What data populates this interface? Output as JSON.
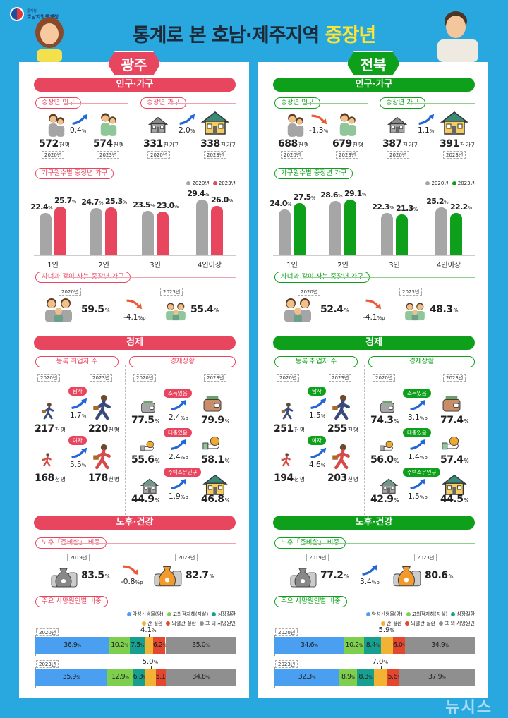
{
  "header": {
    "org_small": "통계청",
    "org": "호남지방통계청",
    "title": "통계로 본 호남·제주지역",
    "title_highlight": "중장년"
  },
  "watermark": "뉴시스",
  "colors": {
    "background": "#29a8e0",
    "gwangju": "#e8455f",
    "jeonbuk": "#0ea01a",
    "bar_2020": "#a6a6a6"
  },
  "death_legend": [
    "악성신생물(암)",
    "고의적자해(자살)",
    "심장질환",
    "간 질환",
    "뇌혈관 질환",
    "그 외 사망원인"
  ],
  "death_colors": [
    "#4a9ff0",
    "#7fcf4f",
    "#179f8f",
    "#f2b233",
    "#e4472e",
    "#8f8f8f"
  ],
  "regions": [
    {
      "name": "광주",
      "color": "#e8455f",
      "line": "#f2a3b0",
      "sections": {
        "pop": "인구·가구",
        "econ": "경제",
        "health": "노후·건강"
      },
      "population": {
        "label": "중장년 인구",
        "from": {
          "value": "572",
          "unit": "천 명",
          "year": "2020년"
        },
        "to": {
          "value": "574",
          "unit": "천 명",
          "year": "2023년"
        },
        "change": "0.4",
        "change_unit": "%",
        "direction": "up"
      },
      "households": {
        "label": "중장년 가구",
        "from": {
          "value": "331",
          "unit": "천 가구",
          "year": "2020년"
        },
        "to": {
          "value": "338",
          "unit": "천 가구",
          "year": "2023년"
        },
        "change": "2.0",
        "change_unit": "%",
        "direction": "up"
      },
      "household_size": {
        "label": "가구원수별 중장년 가구",
        "legend": [
          "2020년",
          "2023년"
        ],
        "categories": [
          "1인",
          "2인",
          "3인",
          "4인이상"
        ],
        "y2020": [
          22.4,
          24.7,
          23.5,
          29.4
        ],
        "y2023": [
          25.7,
          25.3,
          23.0,
          26.0
        ],
        "unit": "%"
      },
      "with_children": {
        "label": "자녀과 같이 사는 중장년 가구",
        "from": {
          "year": "2020년",
          "value": "59.5"
        },
        "to": {
          "year": "2023년",
          "value": "55.4"
        },
        "unit": "%",
        "change": "-4.1",
        "change_unit": "%p",
        "direction": "down"
      },
      "employment": {
        "label": "등록 취업자 수",
        "years": [
          "2020년",
          "2023년"
        ],
        "unit": "천 명",
        "change_unit": "%",
        "rows": [
          {
            "tag": "남자",
            "from": "217",
            "to": "220",
            "change": "1.7"
          },
          {
            "tag": "여자",
            "from": "168",
            "to": "178",
            "change": "5.5"
          }
        ]
      },
      "economy": {
        "label": "경제상황",
        "years": [
          "2020년",
          "2023년"
        ],
        "unit": "%",
        "change_unit": "%p",
        "rows": [
          {
            "tag": "소득있음",
            "icon": "wallet-icon",
            "from": "77.5",
            "to": "79.9",
            "change": "2.4"
          },
          {
            "tag": "대출있음",
            "icon": "hand-coin-icon",
            "from": "55.6",
            "to": "58.1",
            "change": "2.4"
          },
          {
            "tag": "주택소유인구",
            "icon": "house-icon",
            "from": "44.9",
            "to": "46.8",
            "change": "1.9"
          }
        ]
      },
      "retirement": {
        "label": "노후「준비함」 비중",
        "from": {
          "year": "2019년",
          "value": "83.5"
        },
        "to": {
          "year": "2023년",
          "value": "82.7"
        },
        "unit": "%",
        "change": "-0.8",
        "change_unit": "%p",
        "direction": "down"
      },
      "death_causes": {
        "label": "주요 사망원인별 비중",
        "unit": "%",
        "rows": [
          {
            "year": "2020년",
            "values": [
              36.9,
              10.2,
              7.5,
              4.1,
              6.2,
              35.0
            ]
          },
          {
            "year": "2023년",
            "values": [
              35.9,
              12.9,
              6.3,
              5.0,
              5.1,
              34.8
            ]
          }
        ]
      }
    },
    {
      "name": "전북",
      "color": "#0ea01a",
      "line": "#8fd08f",
      "sections": {
        "pop": "인구·가구",
        "econ": "경제",
        "health": "노후·건강"
      },
      "population": {
        "label": "중장년 인구",
        "from": {
          "value": "688",
          "unit": "천 명",
          "year": "2020년"
        },
        "to": {
          "value": "679",
          "unit": "천 명",
          "year": "2023년"
        },
        "change": "-1.3",
        "change_unit": "%",
        "direction": "down"
      },
      "households": {
        "label": "중장년 가구",
        "from": {
          "value": "387",
          "unit": "천 가구",
          "year": "2020년"
        },
        "to": {
          "value": "391",
          "unit": "천 가구",
          "year": "2023년"
        },
        "change": "1.1",
        "change_unit": "%",
        "direction": "up"
      },
      "household_size": {
        "label": "가구원수별 중장년 가구",
        "legend": [
          "2020년",
          "2023년"
        ],
        "categories": [
          "1인",
          "2인",
          "3인",
          "4인이상"
        ],
        "y2020": [
          24.0,
          28.6,
          22.3,
          25.2
        ],
        "y2023": [
          27.5,
          29.1,
          21.3,
          22.2
        ],
        "unit": "%"
      },
      "with_children": {
        "label": "자녀과 같이 사는 중장년 가구",
        "from": {
          "year": "2020년",
          "value": "52.4"
        },
        "to": {
          "year": "2023년",
          "value": "48.3"
        },
        "unit": "%",
        "change": "-4.1",
        "change_unit": "%p",
        "direction": "down"
      },
      "employment": {
        "label": "등록 취업자 수",
        "years": [
          "2020년",
          "2023년"
        ],
        "unit": "천 명",
        "change_unit": "%",
        "rows": [
          {
            "tag": "남자",
            "from": "251",
            "to": "255",
            "change": "1.5"
          },
          {
            "tag": "여자",
            "from": "194",
            "to": "203",
            "change": "4.6"
          }
        ]
      },
      "economy": {
        "label": "경제상황",
        "years": [
          "2020년",
          "2023년"
        ],
        "unit": "%",
        "change_unit": "%p",
        "rows": [
          {
            "tag": "소득있음",
            "icon": "wallet-icon",
            "from": "74.3",
            "to": "77.4",
            "change": "3.1"
          },
          {
            "tag": "대출있음",
            "icon": "hand-coin-icon",
            "from": "56.0",
            "to": "57.4",
            "change": "1.4"
          },
          {
            "tag": "주택소유인구",
            "icon": "house-icon",
            "from": "42.9",
            "to": "44.5",
            "change": "1.5"
          }
        ]
      },
      "retirement": {
        "label": "노후「준비함」 비중",
        "from": {
          "year": "2019년",
          "value": "77.2"
        },
        "to": {
          "year": "2023년",
          "value": "80.6"
        },
        "unit": "%",
        "change": "3.4",
        "change_unit": "%p",
        "direction": "up"
      },
      "death_causes": {
        "label": "주요 사망원인별 비중",
        "unit": "%",
        "rows": [
          {
            "year": "2020년",
            "values": [
              34.6,
              10.2,
              8.4,
              5.9,
              6.0,
              34.9
            ]
          },
          {
            "year": "2023년",
            "values": [
              32.3,
              8.9,
              8.3,
              7.0,
              5.6,
              37.9
            ]
          }
        ]
      }
    }
  ]
}
